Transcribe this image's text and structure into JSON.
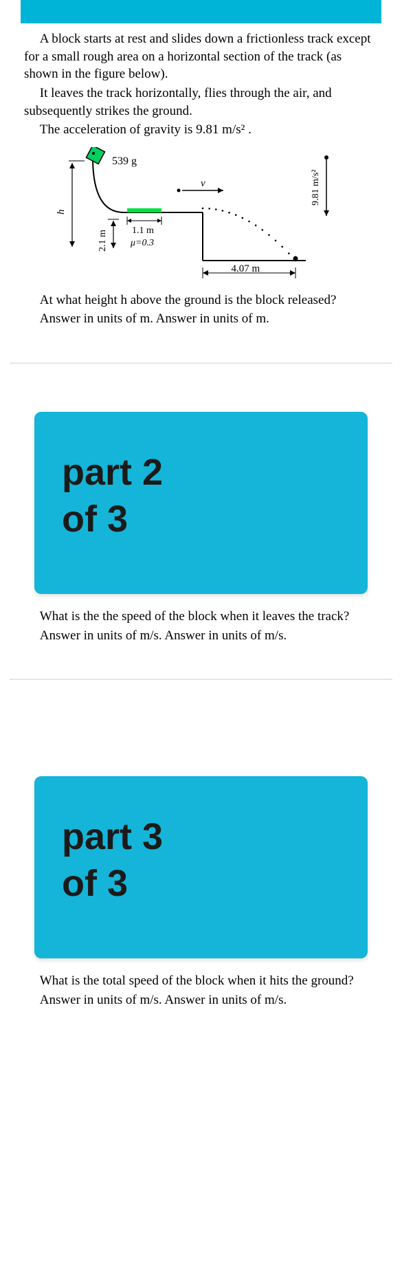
{
  "colors": {
    "accent": "#00b4d8",
    "card": "#14b5d8",
    "block": "#00d060",
    "rough": "#00e040",
    "text": "#000000"
  },
  "part1": {
    "p1": "A block starts at rest and slides down a frictionless track except for a small rough area on a horizontal section of the track (as shown in the figure below).",
    "p2": "It leaves the track horizontally, flies through the air, and subsequently strikes the ground.",
    "p3": "The acceleration of gravity is 9.81 m/s² .",
    "q1": "At what height h above the ground is the block released?",
    "q2": "Answer in units of  m.  Answer in units of m."
  },
  "diagram": {
    "mass": "539 g",
    "h_label": "h",
    "drop_height": "2.1 m",
    "rough_len": "1.1 m",
    "mu": "μ=0.3",
    "range": "4.07 m",
    "v": "v",
    "g": "9.81 m/s²",
    "block_size": 20,
    "track_stroke": "#000",
    "track_width": 2,
    "dot_r": 1.3
  },
  "part2": {
    "title1": "part 2",
    "title2": "of 3",
    "q1": "What is the the speed of the block when it leaves the track?",
    "q2": "Answer in units of  m/s. Answer in units of m/s."
  },
  "part3": {
    "title1": "part 3",
    "title2": "of 3",
    "q1": "What is the total speed of the block when it hits the ground?",
    "q2": "Answer in units of  m/s. Answer in units of m/s."
  }
}
